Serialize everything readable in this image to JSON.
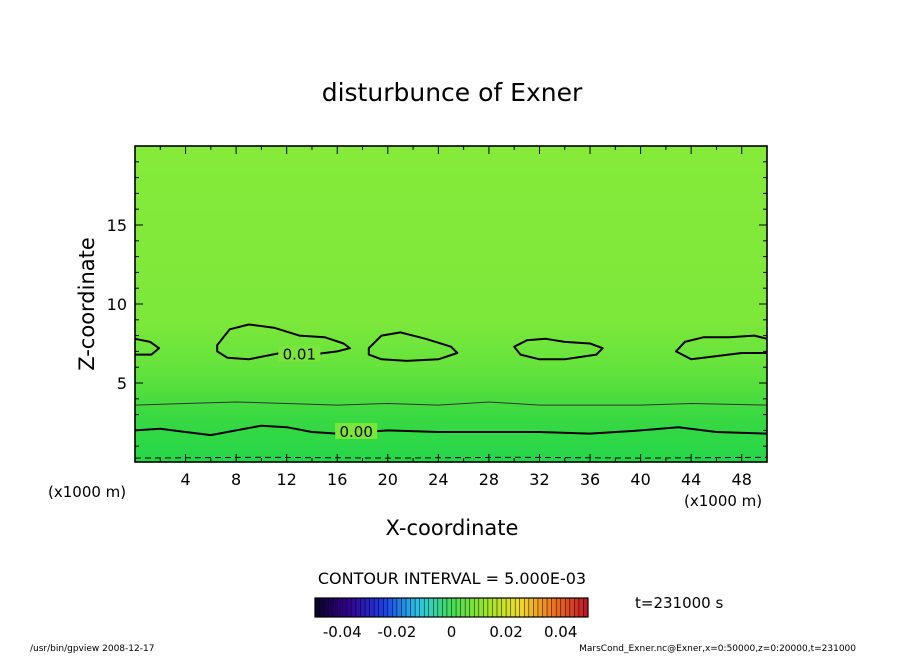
{
  "chart_data": {
    "type": "heatmap",
    "title": "disturbunce of Exner",
    "xlabel": "X-coordinate",
    "ylabel": "Z-coordinate",
    "x_unit": "(x1000 m)",
    "y_unit": "(x1000 m)",
    "xlim": [
      0,
      50
    ],
    "ylim": [
      0,
      20
    ],
    "x_ticks": [
      4,
      8,
      12,
      16,
      20,
      24,
      28,
      32,
      36,
      40,
      44,
      48
    ],
    "y_ticks": [
      5,
      10,
      15
    ],
    "contour_interval_text": "CONTOUR INTERVAL = 5.000E-03",
    "time_text": "t=231000 s",
    "colorbar": {
      "tick_labels": [
        "-0.04",
        "-0.02",
        "0",
        "0.02",
        "0.04"
      ],
      "tick_values": [
        -0.04,
        -0.02,
        0,
        0.02,
        0.04
      ],
      "range": [
        -0.05,
        0.05
      ]
    },
    "contour_labels": [
      {
        "text": "0.01",
        "x": 13.0,
        "z": 6.8,
        "level": 0.01
      },
      {
        "text": "0.00",
        "x": 17.5,
        "z": 1.9,
        "level": 0.0
      }
    ],
    "contours": [
      {
        "level": 0.0,
        "style": "solid-thick",
        "points": [
          [
            0,
            2.0
          ],
          [
            2,
            2.1
          ],
          [
            4,
            1.9
          ],
          [
            6,
            1.7
          ],
          [
            8,
            2.0
          ],
          [
            10,
            2.3
          ],
          [
            12,
            2.2
          ],
          [
            14,
            1.9
          ],
          [
            16,
            1.8
          ],
          [
            18,
            1.9
          ],
          [
            20,
            2.0
          ],
          [
            24,
            1.9
          ],
          [
            28,
            1.9
          ],
          [
            32,
            1.9
          ],
          [
            36,
            1.8
          ],
          [
            40,
            2.0
          ],
          [
            43,
            2.2
          ],
          [
            46,
            1.9
          ],
          [
            50,
            1.8
          ]
        ]
      },
      {
        "level": 0.005,
        "style": "solid-thin",
        "points": [
          [
            0,
            3.6
          ],
          [
            4,
            3.7
          ],
          [
            8,
            3.8
          ],
          [
            12,
            3.7
          ],
          [
            16,
            3.6
          ],
          [
            20,
            3.7
          ],
          [
            24,
            3.6
          ],
          [
            28,
            3.8
          ],
          [
            32,
            3.6
          ],
          [
            36,
            3.6
          ],
          [
            40,
            3.6
          ],
          [
            44,
            3.7
          ],
          [
            50,
            3.6
          ]
        ]
      },
      {
        "level": -0.005,
        "style": "dashed",
        "points": [
          [
            0,
            0.25
          ],
          [
            10,
            0.3
          ],
          [
            20,
            0.25
          ],
          [
            30,
            0.3
          ],
          [
            40,
            0.25
          ],
          [
            50,
            0.3
          ]
        ]
      },
      {
        "level": 0.01,
        "style": "solid-thick",
        "closed": false,
        "points": [
          [
            0,
            7.8
          ],
          [
            1.2,
            7.6
          ],
          [
            1.9,
            7.2
          ],
          [
            1.3,
            6.8
          ],
          [
            0,
            6.8
          ]
        ]
      },
      {
        "level": 0.01,
        "style": "solid-thick",
        "closed": true,
        "points": [
          [
            6.5,
            7.4
          ],
          [
            7.5,
            8.4
          ],
          [
            9,
            8.7
          ],
          [
            11,
            8.5
          ],
          [
            13,
            8.0
          ],
          [
            15,
            7.9
          ],
          [
            16.5,
            7.5
          ],
          [
            17,
            7.2
          ],
          [
            16,
            7.0
          ],
          [
            14,
            6.8
          ],
          [
            11.5,
            6.9
          ],
          [
            9,
            6.5
          ],
          [
            7.3,
            6.6
          ],
          [
            6.5,
            7.0
          ]
        ]
      },
      {
        "level": 0.01,
        "style": "solid-thick",
        "closed": true,
        "points": [
          [
            18.5,
            7.2
          ],
          [
            19.5,
            8.0
          ],
          [
            21,
            8.2
          ],
          [
            23,
            7.8
          ],
          [
            25,
            7.3
          ],
          [
            25.5,
            6.9
          ],
          [
            24,
            6.5
          ],
          [
            21.5,
            6.4
          ],
          [
            19.5,
            6.5
          ],
          [
            18.5,
            6.8
          ]
        ]
      },
      {
        "level": 0.01,
        "style": "solid-thick",
        "closed": true,
        "points": [
          [
            30,
            7.3
          ],
          [
            31,
            7.7
          ],
          [
            32.5,
            7.8
          ],
          [
            34,
            7.6
          ],
          [
            36,
            7.5
          ],
          [
            37,
            7.2
          ],
          [
            36.5,
            6.8
          ],
          [
            34,
            6.5
          ],
          [
            32,
            6.5
          ],
          [
            30.5,
            6.8
          ]
        ]
      },
      {
        "level": 0.01,
        "style": "solid-thick",
        "closed": false,
        "points": [
          [
            50,
            6.9
          ],
          [
            48,
            6.9
          ],
          [
            46,
            6.7
          ],
          [
            44,
            6.5
          ],
          [
            42.8,
            7.0
          ],
          [
            43.5,
            7.6
          ],
          [
            45,
            7.9
          ],
          [
            47,
            7.9
          ],
          [
            49,
            8.0
          ],
          [
            50,
            7.8
          ]
        ]
      }
    ]
  },
  "footer": {
    "left_text": "/usr/bin/gpview   2008-12-17",
    "right_text": "MarsCond_Exner.nc@Exner,x=0:50000,z=0:20000,t=231000"
  }
}
